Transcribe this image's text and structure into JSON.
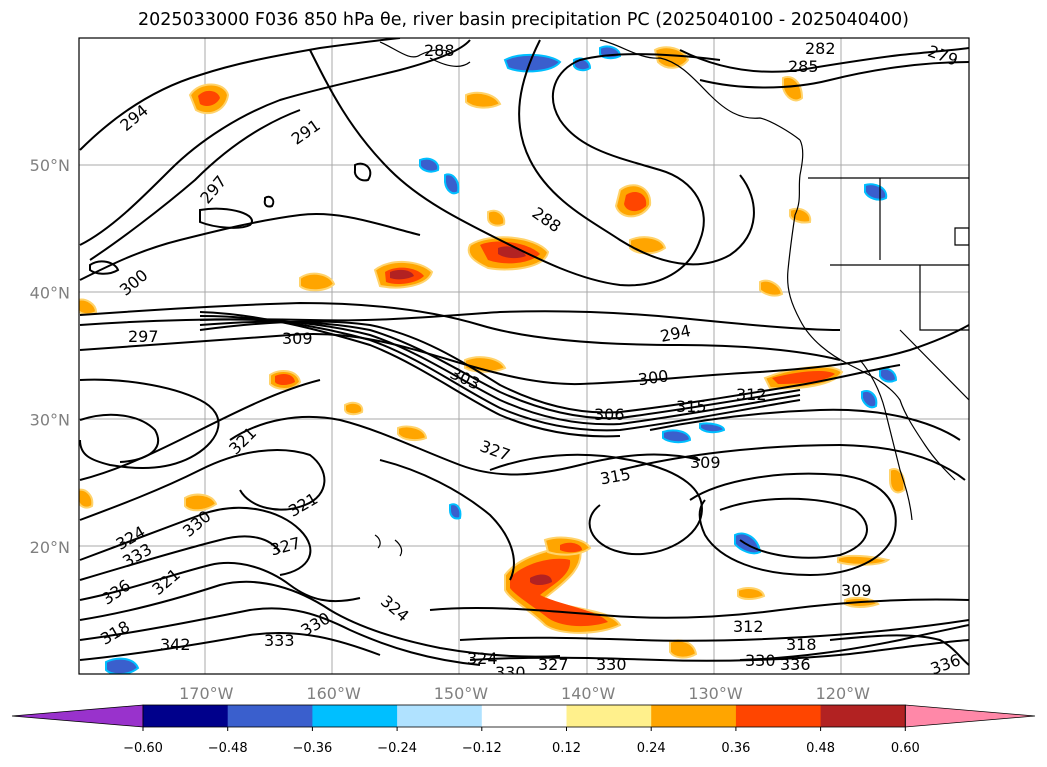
{
  "title": "2025033000 F036 850 hPa θe, river basin precipitation PC (2025040100 - 2025040400)",
  "lat_labels": [
    {
      "text": "50°N",
      "lat": 50
    },
    {
      "text": "40°N",
      "lat": 40
    },
    {
      "text": "30°N",
      "lat": 30
    },
    {
      "text": "20°N",
      "lat": 20
    }
  ],
  "lon_labels": [
    {
      "text": "170°W",
      "lon": -170
    },
    {
      "text": "160°W",
      "lon": -160
    },
    {
      "text": "150°W",
      "lon": -150
    },
    {
      "text": "140°W",
      "lon": -140
    },
    {
      "text": "130°W",
      "lon": -130
    },
    {
      "text": "120°W",
      "lon": -120
    }
  ],
  "colorbar": {
    "colors": [
      "#9932cc",
      "#00008b",
      "#3a5fcd",
      "#00bfff",
      "#b0e2ff",
      "#ffffff",
      "#fff08c",
      "#ffa500",
      "#ff4500",
      "#b22222",
      "#ff88a8"
    ],
    "ticks": [
      "−0.60",
      "−0.48",
      "−0.36",
      "−0.24",
      "−0.12",
      "0.12",
      "0.24",
      "0.36",
      "0.48",
      "0.60"
    ]
  },
  "contour_labels": [
    "294",
    "291",
    "297",
    "300",
    "297",
    "309",
    "288",
    "288",
    "285",
    "282",
    "279",
    "294",
    "300",
    "303",
    "306",
    "315",
    "312",
    "321",
    "327",
    "315",
    "309",
    "321",
    "330",
    "327",
    "333",
    "324",
    "318",
    "336",
    "321",
    "342",
    "333",
    "330",
    "324",
    "324",
    "330",
    "327",
    "330",
    "312",
    "318",
    "330",
    "336",
    "309",
    "336"
  ]
}
